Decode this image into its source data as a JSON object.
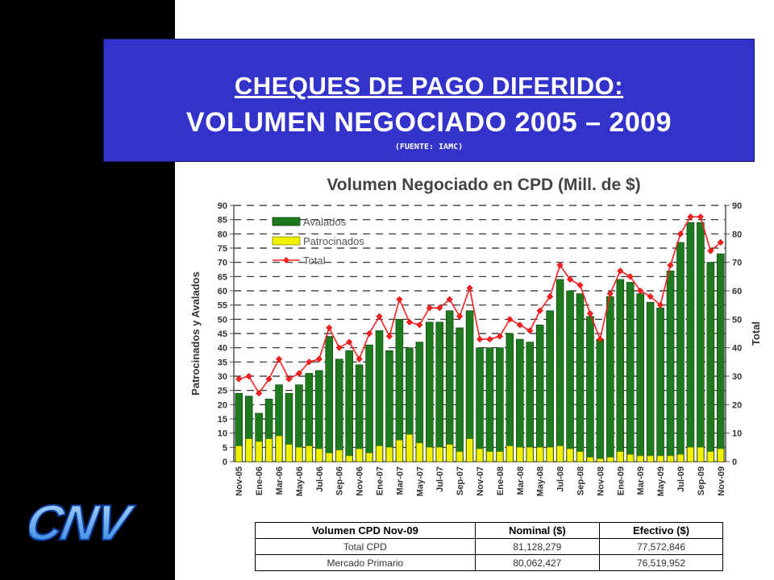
{
  "slide": {
    "title_line1": "CHEQUES DE PAGO DIFERIDO:",
    "title_line2": "VOLUMEN NEGOCIADO 2005 – 2009",
    "source": "(FUENTE: IAMC)",
    "logo_text": "CNV",
    "colors": {
      "left_band": "#000000",
      "title_bg": "#3333cc",
      "title_text": "#ffffff"
    }
  },
  "chart_data": {
    "type": "bar",
    "title": "Volumen Negociado en CPD (Mill. de $)",
    "ylabel_left": "Patrocinados y Avalados",
    "ylabel_right": "Total",
    "ylim": [
      0,
      90
    ],
    "yticks": [
      0,
      5,
      10,
      15,
      20,
      25,
      30,
      35,
      40,
      45,
      50,
      55,
      60,
      65,
      70,
      75,
      80,
      85,
      90
    ],
    "yticks_right": [
      0,
      10,
      20,
      30,
      40,
      50,
      60,
      70,
      80,
      90
    ],
    "grid": true,
    "legend_position": "top-left",
    "categories": [
      "Nov-05",
      "Dic-05",
      "Ene-06",
      "Feb-06",
      "Mar-06",
      "Abr-06",
      "May-06",
      "Jun-06",
      "Jul-06",
      "Ago-06",
      "Sep-06",
      "Oct-06",
      "Nov-06",
      "Dic-06",
      "Ene-07",
      "Feb-07",
      "Mar-07",
      "Abr-07",
      "May-07",
      "Jun-07",
      "Jul-07",
      "Ago-07",
      "Sep-07",
      "Oct-07",
      "Nov-07",
      "Dic-07",
      "Ene-08",
      "Feb-08",
      "Mar-08",
      "Abr-08",
      "May-08",
      "Jun-08",
      "Jul-08",
      "Ago-08",
      "Sep-08",
      "Oct-08",
      "Nov-08",
      "Dic-08",
      "Ene-09",
      "Feb-09",
      "Mar-09",
      "Abr-09",
      "May-09",
      "Jun-09",
      "Jul-09",
      "Ago-09",
      "Sep-09",
      "Oct-09",
      "Nov-09"
    ],
    "xtick_labels": [
      "Nov-05",
      "Ene-06",
      "Mar-06",
      "May-06",
      "Jul-06",
      "Sep-06",
      "Nov-06",
      "Ene-07",
      "Mar-07",
      "May-07",
      "Jul-07",
      "Sep-07",
      "Nov-07",
      "Ene-08",
      "Mar-08",
      "May-08",
      "Jul-08",
      "Sep-08",
      "Nov-08",
      "Ene-09",
      "Mar-09",
      "May-09",
      "Jul-09",
      "Sep-09",
      "Nov-09"
    ],
    "series": [
      {
        "name": "Avalados",
        "type": "bar",
        "color": "#1e7a1e",
        "values": [
          24,
          23,
          17,
          22,
          27,
          24,
          27,
          31,
          32,
          44,
          36,
          39,
          34,
          41,
          46,
          39,
          50,
          40,
          42,
          49,
          49,
          53,
          47,
          53,
          40,
          40,
          40,
          45,
          43,
          42,
          48,
          53,
          64,
          60,
          59,
          51,
          43,
          58,
          64,
          63,
          59,
          56,
          54,
          67,
          77,
          84,
          84,
          70,
          73
        ]
      },
      {
        "name": "Patrocinados",
        "type": "bar",
        "color": "#f0f000",
        "values": [
          5.5,
          8,
          7,
          8,
          9,
          6,
          5,
          5.5,
          4.5,
          3,
          4,
          2,
          4.5,
          3,
          5.5,
          5,
          7.5,
          9.5,
          6.5,
          5,
          5,
          6,
          3.5,
          8,
          4.5,
          3.5,
          3.5,
          5.5,
          5,
          5,
          5,
          5,
          5.5,
          4.5,
          3.5,
          1.5,
          1,
          1.5,
          3.5,
          2.5,
          2,
          2,
          2,
          2,
          2.5,
          5,
          5,
          3.5,
          4.5
        ]
      },
      {
        "name": "Total",
        "type": "line",
        "color": "#ff2020",
        "values": [
          29,
          30,
          24,
          29,
          36,
          29,
          31,
          35,
          36,
          47,
          40,
          42,
          36,
          45,
          51,
          44,
          57,
          49,
          48,
          54,
          54,
          57,
          51,
          61,
          43,
          43,
          44,
          50,
          48,
          46,
          53,
          58,
          69,
          64,
          62,
          52,
          43,
          59,
          67,
          65,
          60,
          58,
          55,
          69,
          80,
          86,
          86,
          74,
          77
        ]
      }
    ]
  },
  "summary_table": {
    "headers": [
      "Volumen CPD Nov-09",
      "Nominal ($)",
      "Efectivo ($)"
    ],
    "rows": [
      [
        "Total CPD",
        "81,128,279",
        "77,572,846"
      ],
      [
        "Mercado Primario",
        "80,062,427",
        "76,519,952"
      ]
    ]
  }
}
